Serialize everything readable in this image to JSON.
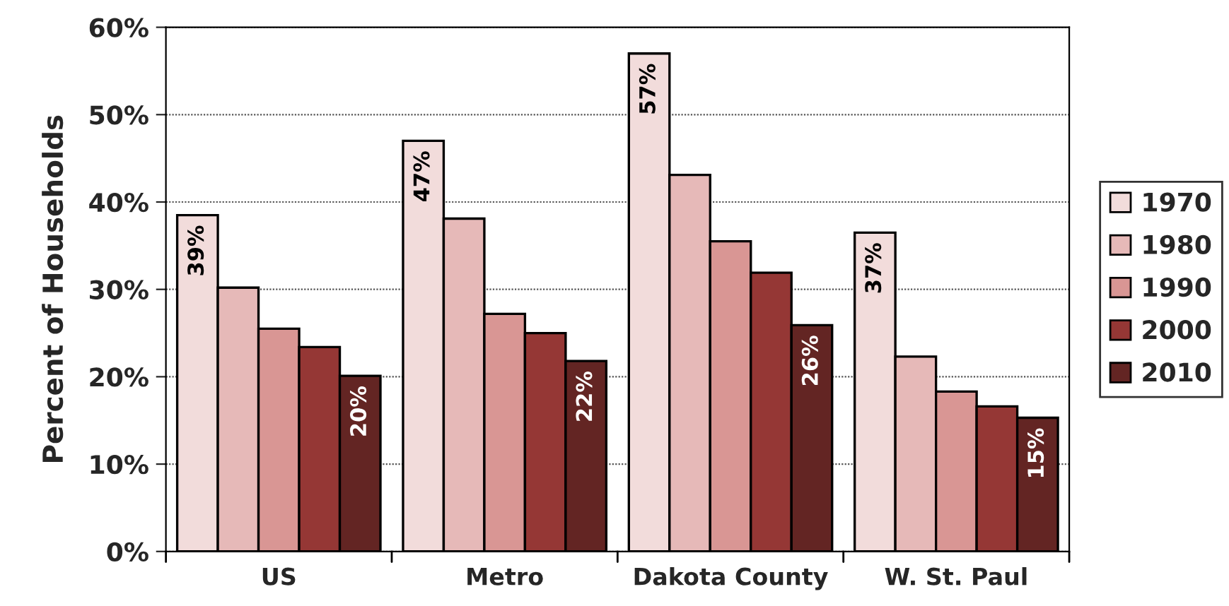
{
  "chart_data": {
    "type": "bar",
    "ylabel": "Percent of Households",
    "categories": [
      "US",
      "Metro",
      "Dakota County",
      "W. St. Paul"
    ],
    "series": [
      {
        "name": "1970",
        "color": "#f2dcdb",
        "values": [
          38.5,
          47.0,
          57.0,
          36.5
        ],
        "value_labels": [
          "39%",
          "47%",
          "57%",
          "37%"
        ]
      },
      {
        "name": "1980",
        "color": "#e6b9b8",
        "values": [
          30.2,
          38.1,
          43.1,
          22.3
        ]
      },
      {
        "name": "1990",
        "color": "#d99694",
        "values": [
          25.5,
          27.2,
          35.5,
          18.3
        ]
      },
      {
        "name": "2000",
        "color": "#953735",
        "values": [
          23.4,
          25.0,
          31.9,
          16.6
        ]
      },
      {
        "name": "2010",
        "color": "#632523",
        "values": [
          20.1,
          21.8,
          25.9,
          15.3
        ],
        "value_labels": [
          "20%",
          "22%",
          "26%",
          "15%"
        ]
      }
    ],
    "ylim": [
      0,
      60
    ],
    "yticks": [
      {
        "value": 0,
        "label": "0%"
      },
      {
        "value": 10,
        "label": "10%"
      },
      {
        "value": 20,
        "label": "20%"
      },
      {
        "value": 30,
        "label": "30%"
      },
      {
        "value": 40,
        "label": "40%"
      },
      {
        "value": 50,
        "label": "50%"
      },
      {
        "value": 60,
        "label": "60%"
      }
    ],
    "grid": "y",
    "legend": "right"
  }
}
